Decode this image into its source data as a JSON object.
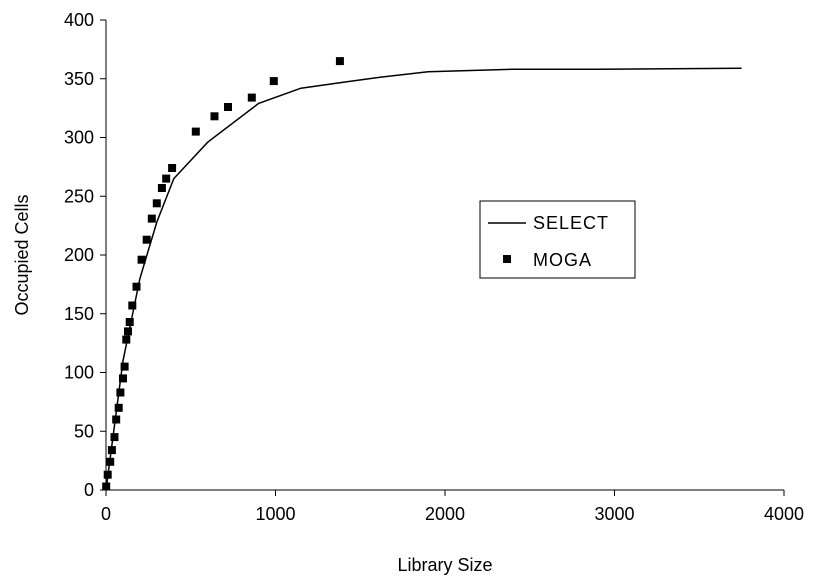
{
  "chart_data": {
    "type": "scatter",
    "title": "",
    "xlabel": "Library Size",
    "ylabel": "Occupied Cells",
    "xlim": [
      0,
      4000
    ],
    "ylim": [
      0,
      400
    ],
    "xticks": [
      0,
      1000,
      2000,
      3000,
      4000
    ],
    "yticks": [
      0,
      50,
      100,
      150,
      200,
      250,
      300,
      350,
      400
    ],
    "grid": false,
    "legend_position": "right",
    "series": [
      {
        "name": "SELECT",
        "type": "line",
        "color": "#000000",
        "x": [
          0,
          100,
          200,
          300,
          400,
          600,
          900,
          1150,
          1400,
          1600,
          1900,
          2400,
          2900,
          3750
        ],
        "y": [
          0,
          110,
          180,
          228,
          265,
          296,
          329,
          342,
          347,
          351,
          356,
          358,
          358,
          359
        ]
      },
      {
        "name": "MOGA",
        "type": "scatter",
        "marker": "square",
        "color": "#000000",
        "x": [
          1,
          10,
          25,
          35,
          50,
          60,
          75,
          85,
          100,
          110,
          120,
          130,
          140,
          155,
          180,
          210,
          240,
          270,
          300,
          330,
          355,
          390,
          530,
          640,
          720,
          860,
          990,
          1380
        ],
        "y": [
          3,
          13,
          24,
          34,
          45,
          60,
          70,
          83,
          95,
          105,
          128,
          135,
          143,
          157,
          173,
          196,
          213,
          231,
          244,
          257,
          265,
          274,
          305,
          318,
          326,
          334,
          348,
          365
        ]
      }
    ]
  }
}
